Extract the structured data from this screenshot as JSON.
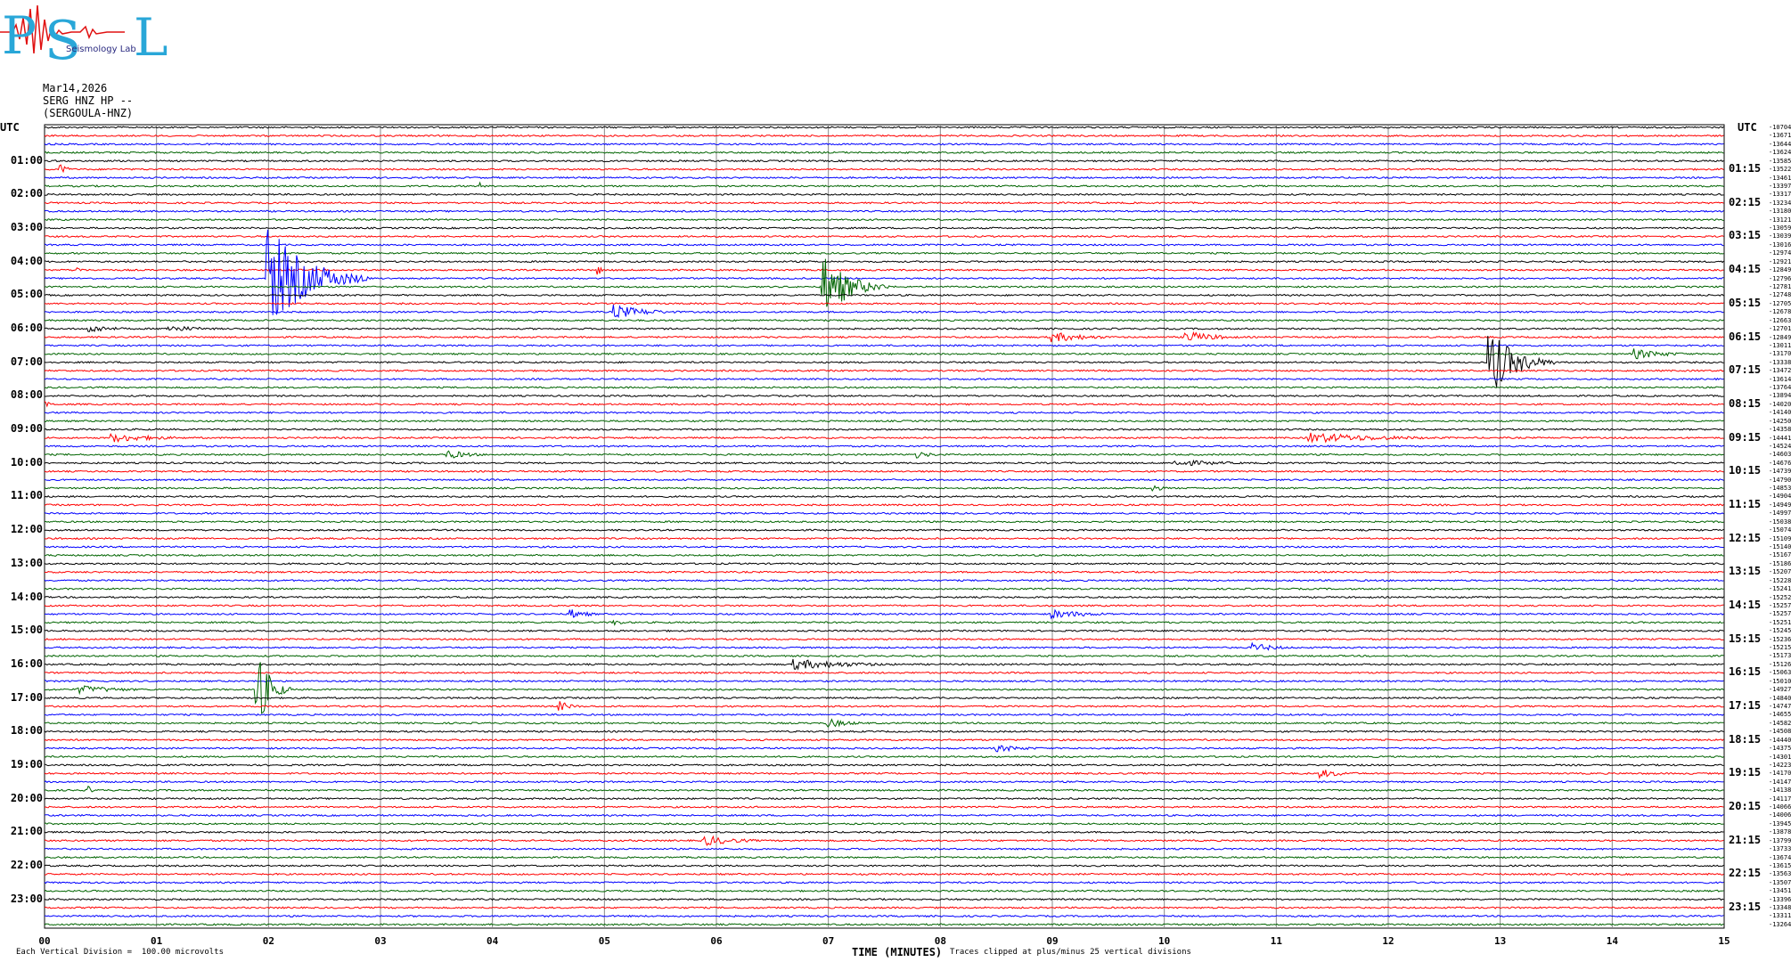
{
  "logo": {
    "letters": [
      "P",
      "S",
      "L"
    ],
    "subtitle": "Seismology Lab"
  },
  "header": {
    "date": "Mar14,2026",
    "station_line": "SERG HNZ HP --",
    "station_name": "(SERGOULA-HNZ)",
    "utc_left": "UTC",
    "utc_right": "UTC"
  },
  "footer": {
    "vertical_division": "Each Vertical Division =  100.00 microvolts",
    "x_axis_label": "TIME (MINUTES)",
    "clip_note": "Traces clipped at plus/minus 25 vertical divisions"
  },
  "colors": {
    "cycle": [
      "#000000",
      "#ff0000",
      "#0000ff",
      "#006400"
    ],
    "grid": "#888888"
  },
  "chart_data": {
    "type": "line",
    "title": "",
    "xlabel": "TIME (MINUTES)",
    "ylabel": "UTC",
    "xlim": [
      0,
      15
    ],
    "x_ticks": [
      "00",
      "01",
      "02",
      "03",
      "04",
      "05",
      "06",
      "07",
      "08",
      "09",
      "10",
      "11",
      "12",
      "13",
      "14",
      "15"
    ],
    "rows_per_hour": 4,
    "minutes_per_row": 15,
    "left_ticks": [
      "01:00",
      "02:00",
      "03:00",
      "04:00",
      "05:00",
      "06:00",
      "07:00",
      "08:00",
      "09:00",
      "10:00",
      "11:00",
      "12:00",
      "13:00",
      "14:00",
      "15:00",
      "16:00",
      "17:00",
      "18:00",
      "19:00",
      "20:00",
      "21:00",
      "22:00",
      "23:00"
    ],
    "right_ticks": [
      "01:15",
      "02:15",
      "03:15",
      "04:15",
      "05:15",
      "06:15",
      "07:15",
      "08:15",
      "09:15",
      "10:15",
      "11:15",
      "12:15",
      "13:15",
      "14:15",
      "15:15",
      "16:15",
      "17:15",
      "18:15",
      "19:15",
      "20:15",
      "21:15",
      "22:15",
      "23:15"
    ],
    "offsets": [
      "-10704",
      "-13671",
      "-13644",
      "-13624",
      "-13585",
      "-13522",
      "-13461",
      "-13397",
      "-13317",
      "-13234",
      "-13180",
      "-13121",
      "-13059",
      "-13039",
      "-13016",
      "-12974",
      "-12921",
      "-12849",
      "-12796",
      "-12781",
      "-12748",
      "-12705",
      "-12678",
      "-12663",
      "-12701",
      "-12849",
      "-13011",
      "-13170",
      "-13338",
      "-13472",
      "-13614",
      "-13764",
      "-13894",
      "-14020",
      "-14140",
      "-14250",
      "-14358",
      "-14441",
      "-14524",
      "-14603",
      "-14676",
      "-14739",
      "-14790",
      "-14853",
      "-14904",
      "-14949",
      "-14997",
      "-15038",
      "-15074",
      "-15109",
      "-15140",
      "-15167",
      "-15186",
      "-15207",
      "-15228",
      "-15241",
      "-15252",
      "-15257",
      "-15257",
      "-15251",
      "-15245",
      "-15236",
      "-15215",
      "-15173",
      "-15126",
      "-15063",
      "-15010",
      "-14927",
      "-14840",
      "-14747",
      "-14655",
      "-14582",
      "-14508",
      "-14440",
      "-14375",
      "-14301",
      "-14223",
      "-14170",
      "-14147",
      "-14138",
      "-14117",
      "-14066",
      "-14006",
      "-13945",
      "-13878",
      "-13799",
      "-13733",
      "-13674",
      "-13615",
      "-13563",
      "-13507",
      "-13451",
      "-13396",
      "-13348",
      "-13311",
      "-13264"
    ],
    "events": [
      {
        "row": 5,
        "minute": 0.15,
        "amp": 5,
        "len": 0.2
      },
      {
        "row": 7,
        "minute": 3.9,
        "amp": 3,
        "len": 0.1
      },
      {
        "row": 17,
        "minute": 0.3,
        "amp": 4,
        "len": 0.1
      },
      {
        "row": 17,
        "minute": 4.95,
        "amp": 5,
        "len": 0.1
      },
      {
        "row": 18,
        "minute": 2.0,
        "amp": 60,
        "len": 0.9
      },
      {
        "row": 19,
        "minute": 6.95,
        "amp": 38,
        "len": 0.6
      },
      {
        "row": 22,
        "minute": 5.1,
        "amp": 8,
        "len": 0.8
      },
      {
        "row": 24,
        "minute": 0.4,
        "amp": 5,
        "len": 0.6
      },
      {
        "row": 24,
        "minute": 1.1,
        "amp": 4,
        "len": 0.9
      },
      {
        "row": 25,
        "minute": 9.0,
        "amp": 6,
        "len": 0.9
      },
      {
        "row": 25,
        "minute": 10.2,
        "amp": 7,
        "len": 0.7
      },
      {
        "row": 27,
        "minute": 14.2,
        "amp": 6,
        "len": 0.8
      },
      {
        "row": 28,
        "minute": 12.9,
        "amp": 40,
        "len": 0.6
      },
      {
        "row": 33,
        "minute": 0.0,
        "amp": 4,
        "len": 0.2
      },
      {
        "row": 37,
        "minute": 0.6,
        "amp": 5,
        "len": 1.2
      },
      {
        "row": 37,
        "minute": 11.3,
        "amp": 6,
        "len": 1.9
      },
      {
        "row": 39,
        "minute": 3.6,
        "amp": 5,
        "len": 0.6
      },
      {
        "row": 39,
        "minute": 7.8,
        "amp": 4,
        "len": 0.4
      },
      {
        "row": 40,
        "minute": 10.1,
        "amp": 4,
        "len": 1.2
      },
      {
        "row": 43,
        "minute": 9.9,
        "amp": 5,
        "len": 0.2
      },
      {
        "row": 58,
        "minute": 4.7,
        "amp": 6,
        "len": 0.4
      },
      {
        "row": 58,
        "minute": 9.0,
        "amp": 5,
        "len": 1.0
      },
      {
        "row": 59,
        "minute": 5.1,
        "amp": 3,
        "len": 0.3
      },
      {
        "row": 62,
        "minute": 10.8,
        "amp": 5,
        "len": 0.6
      },
      {
        "row": 64,
        "minute": 6.7,
        "amp": 6,
        "len": 1.5
      },
      {
        "row": 67,
        "minute": 0.3,
        "amp": 5,
        "len": 1.0
      },
      {
        "row": 67,
        "minute": 1.9,
        "amp": 45,
        "len": 0.3
      },
      {
        "row": 69,
        "minute": 4.6,
        "amp": 6,
        "len": 0.3
      },
      {
        "row": 71,
        "minute": 7.0,
        "amp": 5,
        "len": 0.6
      },
      {
        "row": 74,
        "minute": 8.5,
        "amp": 4,
        "len": 0.8
      },
      {
        "row": 77,
        "minute": 11.4,
        "amp": 5,
        "len": 0.6
      },
      {
        "row": 79,
        "minute": 0.4,
        "amp": 4,
        "len": 0.1
      },
      {
        "row": 85,
        "minute": 5.9,
        "amp": 6,
        "len": 0.8
      }
    ]
  }
}
